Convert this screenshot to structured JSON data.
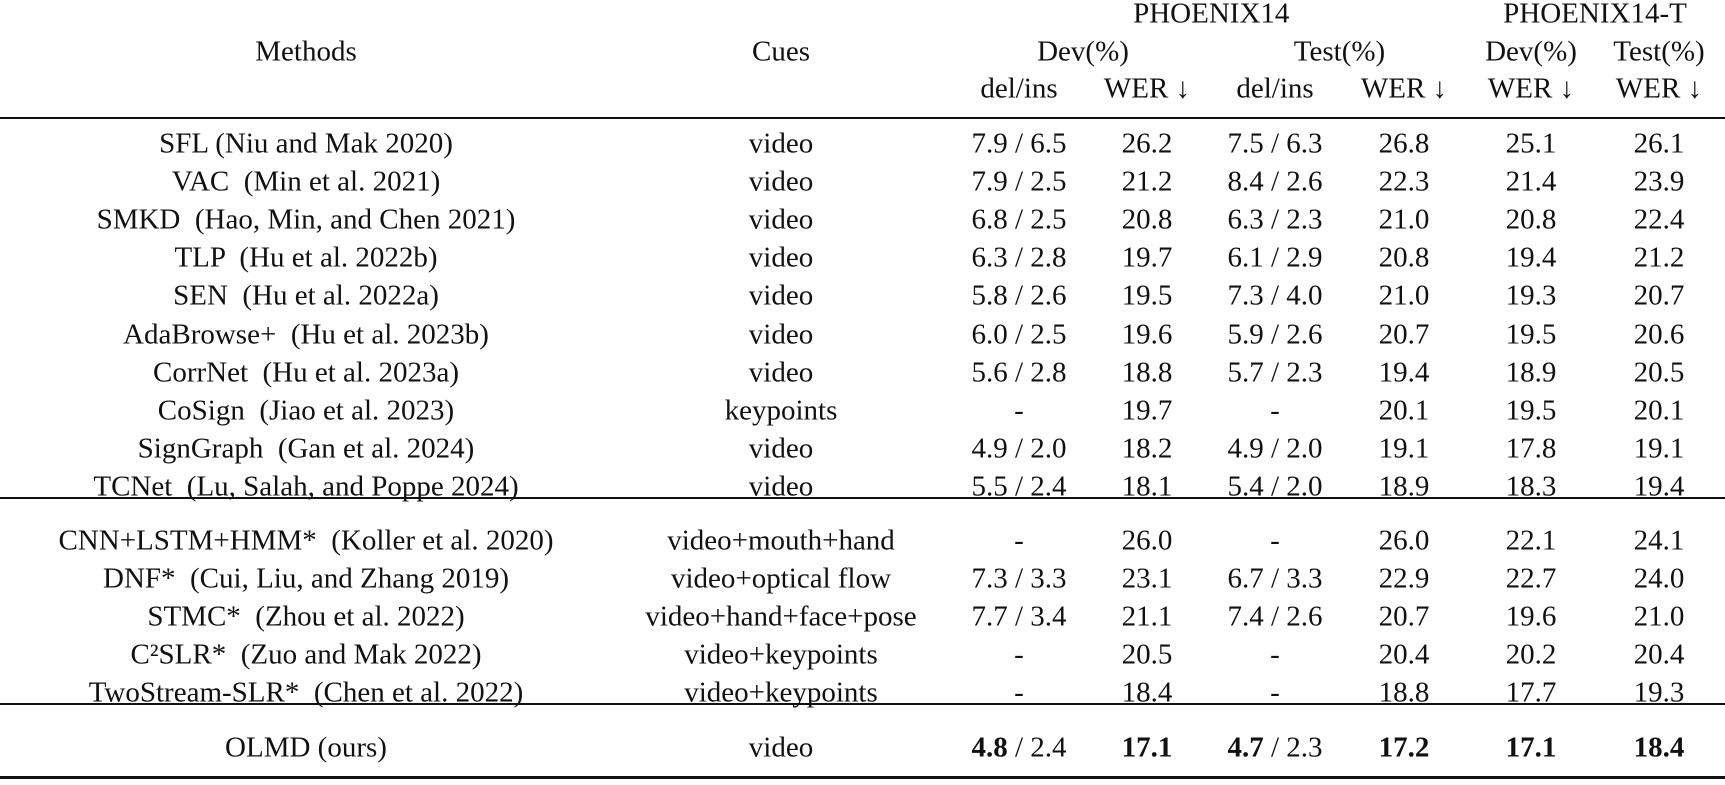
{
  "header": {
    "methods": "Methods",
    "cues": "Cues",
    "groups": [
      {
        "name": "PHOENIX14",
        "splits": [
          {
            "name": "Dev(%)",
            "metrics": [
              "del/ins",
              "WER ↓"
            ]
          },
          {
            "name": "Test(%)",
            "metrics": [
              "del/ins",
              "WER ↓"
            ]
          }
        ]
      },
      {
        "name": "PHOENIX14-T",
        "splits": [
          {
            "name": "Dev(%)",
            "metrics": [
              "WER ↓"
            ]
          },
          {
            "name": "Test(%)",
            "metrics": [
              "WER ↓"
            ]
          }
        ]
      }
    ]
  },
  "sections": [
    {
      "rows": [
        {
          "method": "SFL (Niu and Mak 2020)",
          "cues": "video",
          "values": [
            "7.9 / 6.5",
            "26.2",
            "7.5 / 6.3",
            "26.8",
            "25.1",
            "26.1"
          ]
        },
        {
          "method": "VAC  (Min et al. 2021)",
          "cues": "video",
          "values": [
            "7.9 / 2.5",
            "21.2",
            "8.4 / 2.6",
            "22.3",
            "21.4",
            "23.9"
          ]
        },
        {
          "method": "SMKD  (Hao, Min, and Chen 2021)",
          "cues": "video",
          "values": [
            "6.8 / 2.5",
            "20.8",
            "6.3 / 2.3",
            "21.0",
            "20.8",
            "22.4"
          ]
        },
        {
          "method": "TLP  (Hu et al. 2022b)",
          "cues": "video",
          "values": [
            "6.3 / 2.8",
            "19.7",
            "6.1 / 2.9",
            "20.8",
            "19.4",
            "21.2"
          ]
        },
        {
          "method": "SEN  (Hu et al. 2022a)",
          "cues": "video",
          "values": [
            "5.8 / 2.6",
            "19.5",
            "7.3 / 4.0",
            "21.0",
            "19.3",
            "20.7"
          ]
        },
        {
          "method": "AdaBrowse+  (Hu et al. 2023b)",
          "cues": "video",
          "values": [
            "6.0 / 2.5",
            "19.6",
            "5.9 / 2.6",
            "20.7",
            "19.5",
            "20.6"
          ]
        },
        {
          "method": "CorrNet  (Hu et al. 2023a)",
          "cues": "video",
          "values": [
            "5.6 / 2.8",
            "18.8",
            "5.7 / 2.3",
            "19.4",
            "18.9",
            "20.5"
          ]
        },
        {
          "method": "CoSign  (Jiao et al. 2023)",
          "cues": "keypoints",
          "values": [
            "-",
            "19.7",
            "-",
            "20.1",
            "19.5",
            "20.1"
          ]
        },
        {
          "method": "SignGraph  (Gan et al. 2024)",
          "cues": "video",
          "values": [
            "4.9 / 2.0",
            "18.2",
            "4.9 / 2.0",
            "19.1",
            "17.8",
            "19.1"
          ]
        },
        {
          "method": "TCNet  (Lu, Salah, and Poppe 2024)",
          "cues": "video",
          "values": [
            "5.5 / 2.4",
            "18.1",
            "5.4 / 2.0",
            "18.9",
            "18.3",
            "19.4"
          ]
        }
      ]
    },
    {
      "rows": [
        {
          "method": "CNN+LSTM+HMM*  (Koller et al. 2020)",
          "cues": "video+mouth+hand",
          "values": [
            "-",
            "26.0",
            "-",
            "26.0",
            "22.1",
            "24.1"
          ]
        },
        {
          "method": "DNF*  (Cui, Liu, and Zhang 2019)",
          "cues": "video+optical flow",
          "values": [
            "7.3 / 3.3",
            "23.1",
            "6.7 / 3.3",
            "22.9",
            "22.7",
            "24.0"
          ]
        },
        {
          "method": "STMC*  (Zhou et al. 2022)",
          "cues": "video+hand+face+pose",
          "values": [
            "7.7 / 3.4",
            "21.1",
            "7.4 / 2.6",
            "20.7",
            "19.6",
            "21.0"
          ]
        },
        {
          "method": "C²SLR*  (Zuo and Mak 2022)",
          "cues": "video+keypoints",
          "values": [
            "-",
            "20.5",
            "-",
            "20.4",
            "20.2",
            "20.4"
          ]
        },
        {
          "method": "TwoStream-SLR*  (Chen et al. 2022)",
          "cues": "video+keypoints",
          "values": [
            "-",
            "18.4",
            "-",
            "18.8",
            "17.7",
            "19.3"
          ]
        }
      ]
    },
    {
      "rows": [
        {
          "method": "OLMD (ours)",
          "cues": "video",
          "values": [
            [
              {
                "text": "4.8",
                "bold": true
              },
              {
                "text": "/ 2.4",
                "bold": false
              }
            ],
            [
              {
                "text": "17.1",
                "bold": true
              }
            ],
            [
              {
                "text": "4.7",
                "bold": true
              },
              {
                "text": "/ 2.3",
                "bold": false
              }
            ],
            [
              {
                "text": "17.2",
                "bold": true
              }
            ],
            [
              {
                "text": "17.1",
                "bold": true
              }
            ],
            [
              {
                "text": "18.4",
                "bold": true
              }
            ]
          ]
        }
      ]
    }
  ]
}
